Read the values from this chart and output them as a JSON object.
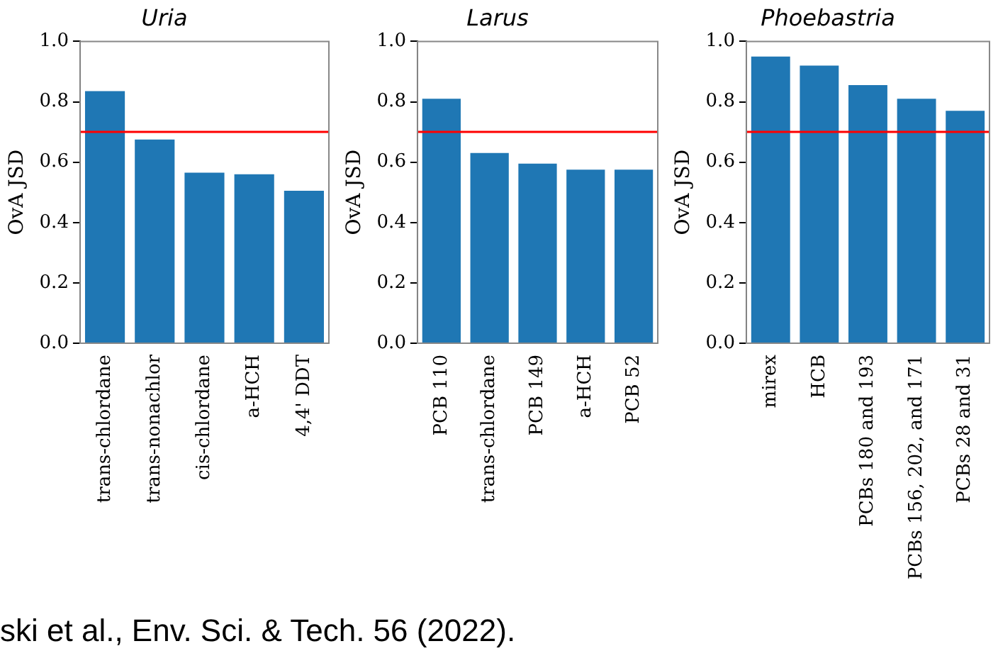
{
  "chart_data": [
    {
      "type": "bar",
      "title": "Uria",
      "ylabel": "OvA JSD",
      "categories": [
        "trans-chlordane",
        "trans-nonachlor",
        "cis-chlordane",
        "a-HCH",
        "4,4' DDT"
      ],
      "values": [
        0.835,
        0.675,
        0.565,
        0.56,
        0.505
      ],
      "color": "#1f77b4",
      "ylim": [
        0,
        1
      ],
      "yticks": [
        {
          "value": 0,
          "label": "0.0"
        },
        {
          "value": 0.2,
          "label": "0.2"
        },
        {
          "value": 0.4,
          "label": "0.4"
        },
        {
          "value": 0.6,
          "label": "0.6"
        },
        {
          "value": 0.8,
          "label": "0.8"
        },
        {
          "value": 1,
          "label": "1.0"
        }
      ],
      "ref_lines": [
        {
          "axis": "y",
          "value": 0.7,
          "color": "#ff0000"
        }
      ],
      "grid": false,
      "annotations": [
        "ski et al., Env. Sci. & Tech. 56 (2022)."
      ]
    },
    {
      "type": "bar",
      "title": "Larus",
      "ylabel": "OvA JSD",
      "categories": [
        "PCB 110",
        "trans-chlordane",
        "PCB 149",
        "a-HCH",
        "PCB 52"
      ],
      "values": [
        0.81,
        0.63,
        0.595,
        0.575,
        0.575
      ],
      "color": "#1f77b4",
      "ylim": [
        0,
        1
      ],
      "yticks": [
        {
          "value": 0,
          "label": "0.0"
        },
        {
          "value": 0.2,
          "label": "0.2"
        },
        {
          "value": 0.4,
          "label": "0.4"
        },
        {
          "value": 0.6,
          "label": "0.6"
        },
        {
          "value": 0.8,
          "label": "0.8"
        },
        {
          "value": 1,
          "label": "1.0"
        }
      ],
      "ref_lines": [
        {
          "axis": "y",
          "value": 0.7,
          "color": "#ff0000"
        }
      ],
      "grid": false
    },
    {
      "type": "bar",
      "title": "Phoebastria",
      "ylabel": "OvA JSD",
      "categories": [
        "mirex",
        "HCB",
        "PCBs 180 and 193",
        "PCBs 156, 202, and 171",
        "PCBs 28 and 31"
      ],
      "values": [
        0.95,
        0.92,
        0.855,
        0.81,
        0.77
      ],
      "color": "#1f77b4",
      "ylim": [
        0,
        1
      ],
      "yticks": [
        {
          "value": 0,
          "label": "0.0"
        },
        {
          "value": 0.2,
          "label": "0.2"
        },
        {
          "value": 0.4,
          "label": "0.4"
        },
        {
          "value": 0.6,
          "label": "0.6"
        },
        {
          "value": 0.8,
          "label": "0.8"
        },
        {
          "value": 1,
          "label": "1.0"
        }
      ],
      "ref_lines": [
        {
          "axis": "y",
          "value": 0.7,
          "color": "#ff0000"
        }
      ],
      "grid": false
    }
  ]
}
